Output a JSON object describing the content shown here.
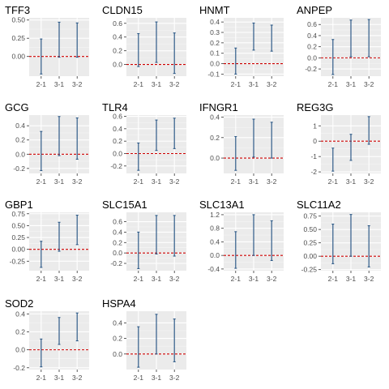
{
  "colors": {
    "panel_bg": "#ebebeb",
    "gridline_major": "#ffffff",
    "gridline_minor": "#f5f5f5",
    "errorbar": "#2e5a87",
    "zero_line": "#cc0000",
    "tick_label": "#4d4d4d",
    "title": "#000000"
  },
  "chart_data": [
    {
      "type": "errorbar",
      "title": "TFF3",
      "categories": [
        "2-1",
        "3-1",
        "3-2"
      ],
      "ylim": [
        -0.27,
        0.53
      ],
      "yticks": [
        0.0,
        0.25,
        0.5
      ],
      "ytick_labels": [
        "0.00",
        "0.25",
        "0.50"
      ],
      "intervals": [
        [
          -0.24,
          0.24
        ],
        [
          -0.01,
          0.47
        ],
        [
          -0.01,
          0.46
        ]
      ],
      "reference_line": 0
    },
    {
      "type": "errorbar",
      "title": "CLDN15",
      "categories": [
        "2-1",
        "3-1",
        "3-2"
      ],
      "ylim": [
        -0.17,
        0.68
      ],
      "yticks": [
        0.0,
        0.2,
        0.4,
        0.6
      ],
      "ytick_labels": [
        "0.0",
        "0.2",
        "0.4",
        "0.6"
      ],
      "intervals": [
        [
          -0.03,
          0.45
        ],
        [
          0.03,
          0.62
        ],
        [
          -0.13,
          0.46
        ]
      ],
      "reference_line": 0
    },
    {
      "type": "errorbar",
      "title": "HNMT",
      "categories": [
        "2-1",
        "3-1",
        "3-2"
      ],
      "ylim": [
        -0.12,
        0.44
      ],
      "yticks": [
        -0.1,
        0.0,
        0.1,
        0.2,
        0.3,
        0.4
      ],
      "ytick_labels": [
        "-0.1",
        "0.0",
        "0.1",
        "0.2",
        "0.3",
        "0.4"
      ],
      "intervals": [
        [
          -0.1,
          0.15
        ],
        [
          0.13,
          0.39
        ],
        [
          0.12,
          0.37
        ]
      ],
      "reference_line": 0
    },
    {
      "type": "errorbar",
      "title": "ANPEP",
      "categories": [
        "2-1",
        "3-1",
        "3-2"
      ],
      "ylim": [
        -0.33,
        0.72
      ],
      "yticks": [
        -0.2,
        0.0,
        0.2,
        0.4,
        0.6
      ],
      "ytick_labels": [
        "-0.2",
        "0.0",
        "0.2",
        "0.4",
        "0.6"
      ],
      "intervals": [
        [
          -0.3,
          0.33
        ],
        [
          0.02,
          0.68
        ],
        [
          0.02,
          0.69
        ]
      ],
      "reference_line": 0
    },
    {
      "type": "errorbar",
      "title": "GCG",
      "categories": [
        "2-1",
        "3-1",
        "3-2"
      ],
      "ylim": [
        -0.27,
        0.55
      ],
      "yticks": [
        -0.2,
        0.0,
        0.2,
        0.4
      ],
      "ytick_labels": [
        "-0.2",
        "0.0",
        "0.2",
        "0.4"
      ],
      "intervals": [
        [
          -0.23,
          0.32
        ],
        [
          -0.02,
          0.53
        ],
        [
          -0.07,
          0.51
        ]
      ],
      "reference_line": 0
    },
    {
      "type": "errorbar",
      "title": "TLR4",
      "categories": [
        "2-1",
        "3-1",
        "3-2"
      ],
      "ylim": [
        -0.32,
        0.62
      ],
      "yticks": [
        -0.2,
        0.0,
        0.2,
        0.4,
        0.6
      ],
      "ytick_labels": [
        "-0.2",
        "0.0",
        "0.2",
        "0.4",
        "0.6"
      ],
      "intervals": [
        [
          -0.27,
          0.17
        ],
        [
          0.05,
          0.54
        ],
        [
          0.08,
          0.57
        ]
      ],
      "reference_line": 0
    },
    {
      "type": "errorbar",
      "title": "IFNGR1",
      "categories": [
        "2-1",
        "3-1",
        "3-2"
      ],
      "ylim": [
        -0.15,
        0.42
      ],
      "yticks": [
        0.0,
        0.2,
        0.4
      ],
      "ytick_labels": [
        "0.0",
        "0.2",
        "0.4"
      ],
      "intervals": [
        [
          -0.12,
          0.21
        ],
        [
          0.01,
          0.38
        ],
        [
          0.0,
          0.35
        ]
      ],
      "reference_line": 0
    },
    {
      "type": "errorbar",
      "title": "REG3G",
      "categories": [
        "2-1",
        "3-1",
        "3-2"
      ],
      "ylim": [
        -2.1,
        1.7
      ],
      "yticks": [
        -2,
        -1,
        0,
        1
      ],
      "ytick_labels": [
        "-2",
        "-1",
        "0",
        "1"
      ],
      "intervals": [
        [
          -1.95,
          -0.45
        ],
        [
          -1.25,
          0.45
        ],
        [
          -0.2,
          1.6
        ]
      ],
      "reference_line": 0
    },
    {
      "type": "errorbar",
      "title": "GBP1",
      "categories": [
        "2-1",
        "3-1",
        "3-2"
      ],
      "ylim": [
        -0.45,
        0.78
      ],
      "yticks": [
        -0.25,
        0.0,
        0.25,
        0.5,
        0.75
      ],
      "ytick_labels": [
        "-0.25",
        "0.00",
        "0.25",
        "0.50",
        "0.75"
      ],
      "intervals": [
        [
          -0.38,
          0.17
        ],
        [
          -0.04,
          0.57
        ],
        [
          0.1,
          0.72
        ]
      ],
      "reference_line": 0
    },
    {
      "type": "errorbar",
      "title": "SLC15A1",
      "categories": [
        "2-1",
        "3-1",
        "3-2"
      ],
      "ylim": [
        -0.34,
        0.78
      ],
      "yticks": [
        -0.2,
        0.0,
        0.2,
        0.4,
        0.6
      ],
      "ytick_labels": [
        "-0.2",
        "0.0",
        "0.2",
        "0.4",
        "0.6"
      ],
      "intervals": [
        [
          -0.3,
          0.4
        ],
        [
          -0.02,
          0.72
        ],
        [
          -0.06,
          0.72
        ]
      ],
      "reference_line": 0
    },
    {
      "type": "errorbar",
      "title": "SLC13A1",
      "categories": [
        "2-1",
        "3-1",
        "3-2"
      ],
      "ylim": [
        -0.45,
        1.27
      ],
      "yticks": [
        -0.4,
        0.0,
        0.4,
        0.8,
        1.2
      ],
      "ytick_labels": [
        "-0.4",
        "0.0",
        "0.4",
        "0.8",
        "1.2"
      ],
      "intervals": [
        [
          -0.38,
          0.7
        ],
        [
          0.0,
          1.2
        ],
        [
          -0.15,
          1.02
        ]
      ],
      "reference_line": 0
    },
    {
      "type": "errorbar",
      "title": "SLC11A2",
      "categories": [
        "2-1",
        "3-1",
        "3-2"
      ],
      "ylim": [
        -0.27,
        0.82
      ],
      "yticks": [
        -0.25,
        0.0,
        0.25,
        0.5,
        0.75
      ],
      "ytick_labels": [
        "-0.25",
        "0.00",
        "0.25",
        "0.50",
        "0.75"
      ],
      "intervals": [
        [
          -0.14,
          0.6
        ],
        [
          0.0,
          0.78
        ],
        [
          -0.2,
          0.57
        ]
      ],
      "reference_line": 0
    },
    {
      "type": "errorbar",
      "title": "SOD2",
      "categories": [
        "2-1",
        "3-1",
        "3-2"
      ],
      "ylim": [
        -0.22,
        0.43
      ],
      "yticks": [
        -0.2,
        0.0,
        0.2,
        0.4
      ],
      "ytick_labels": [
        "-0.2",
        "0.0",
        "0.2",
        "0.4"
      ],
      "intervals": [
        [
          -0.19,
          0.12
        ],
        [
          0.06,
          0.36
        ],
        [
          0.1,
          0.41
        ]
      ],
      "reference_line": 0
    },
    {
      "type": "errorbar",
      "title": "HSPA4",
      "categories": [
        "2-1",
        "3-1",
        "3-2"
      ],
      "ylim": [
        -0.2,
        0.55
      ],
      "yticks": [
        0.0,
        0.2,
        0.4
      ],
      "ytick_labels": [
        "0.0",
        "0.2",
        "0.4"
      ],
      "intervals": [
        [
          -0.17,
          0.35
        ],
        [
          0.0,
          0.51
        ],
        [
          -0.1,
          0.45
        ]
      ],
      "reference_line": 0
    }
  ]
}
